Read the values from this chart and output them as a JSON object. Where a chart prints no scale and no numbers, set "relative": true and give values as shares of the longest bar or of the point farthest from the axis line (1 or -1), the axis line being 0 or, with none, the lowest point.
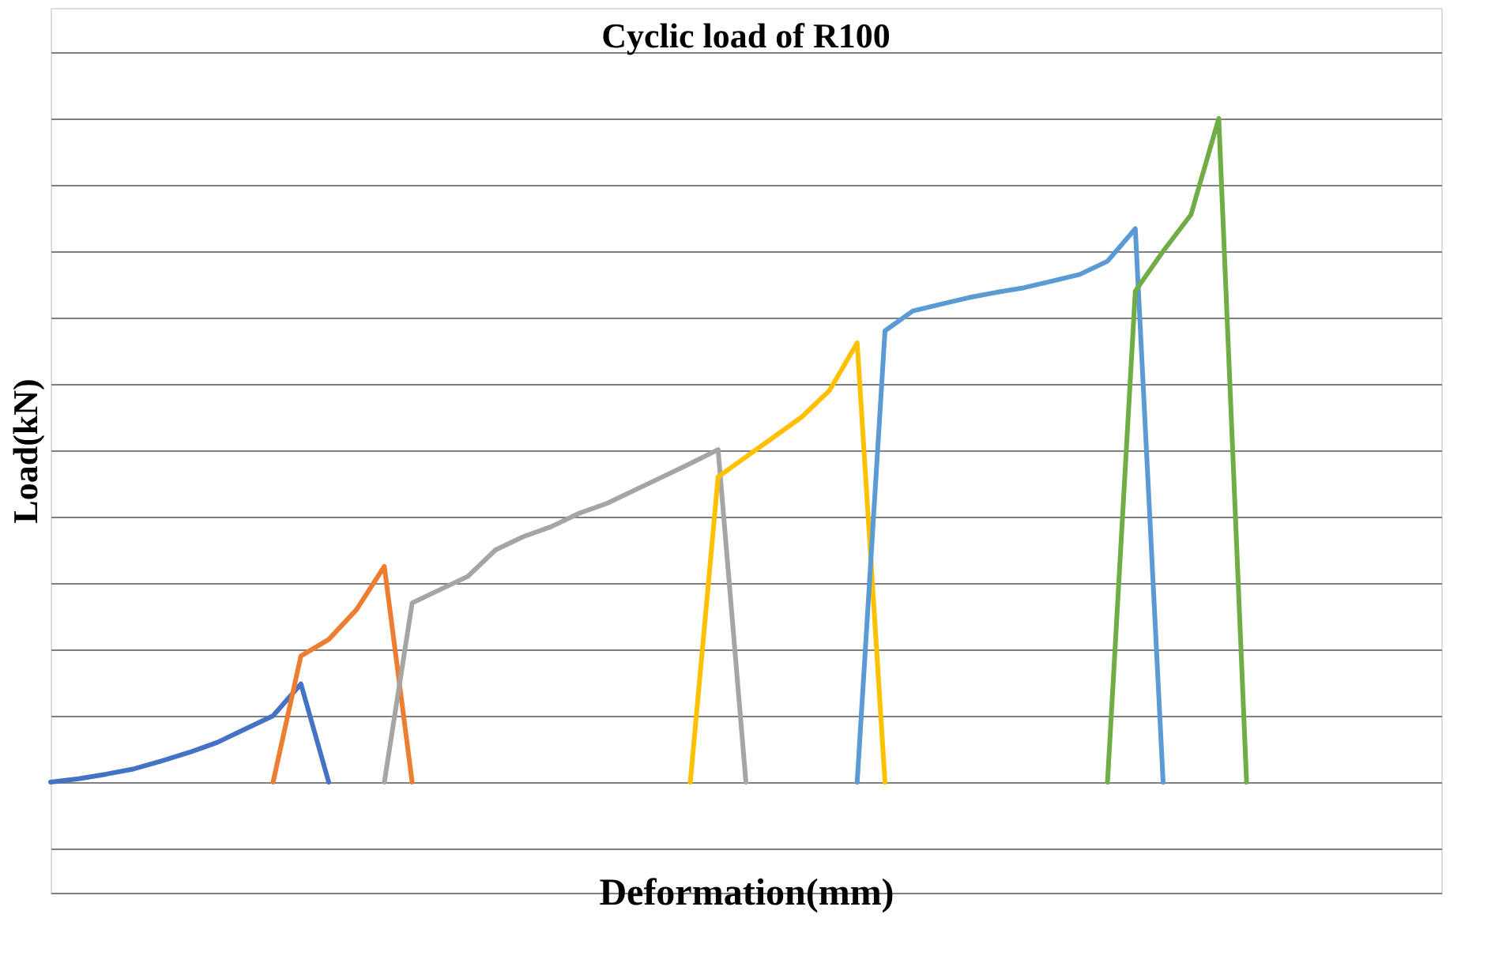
{
  "chart_data": {
    "type": "line",
    "title": "Cyclic load of R100",
    "xlabel": "Deformation(mm)",
    "ylabel": "Load(kN)",
    "relative": true,
    "grid": "y",
    "line_style": "solid",
    "categories": [
      null,
      null,
      null,
      null,
      null,
      null,
      null,
      null,
      null,
      null,
      null,
      null,
      null,
      null,
      null,
      null,
      null,
      null,
      null,
      null,
      null,
      null,
      null,
      null,
      null,
      null,
      null,
      null,
      null,
      null,
      null,
      null,
      null,
      null,
      null,
      null,
      null,
      null,
      null,
      null,
      null,
      null,
      null,
      null,
      null,
      null,
      null,
      null,
      null,
      null,
      null
    ],
    "series": [
      {
        "color": "#4472c4",
        "values": [
          0,
          0.005,
          0.012,
          0.02,
          0.032,
          0.045,
          0.06,
          0.08,
          0.1,
          0.148,
          0,
          null,
          null,
          null,
          null,
          null,
          null,
          null,
          null,
          null,
          null,
          null,
          null,
          null,
          null,
          null,
          null,
          null,
          null,
          null,
          null,
          null,
          null,
          null,
          null,
          null,
          null,
          null,
          null,
          null,
          null,
          null,
          null,
          null,
          null,
          null,
          null,
          null,
          null,
          null,
          null
        ]
      },
      {
        "color": "#ed7d31",
        "values": [
          null,
          null,
          null,
          null,
          null,
          null,
          null,
          null,
          0,
          0.19,
          0.215,
          0.26,
          0.325,
          0,
          null,
          null,
          null,
          null,
          null,
          null,
          null,
          null,
          null,
          null,
          null,
          null,
          null,
          null,
          null,
          null,
          null,
          null,
          null,
          null,
          null,
          null,
          null,
          null,
          null,
          null,
          null,
          null,
          null,
          null,
          null,
          null,
          null,
          null,
          null,
          null,
          null
        ]
      },
      {
        "color": "#a5a5a5",
        "values": [
          null,
          null,
          null,
          null,
          null,
          null,
          null,
          null,
          null,
          null,
          null,
          null,
          0,
          0.27,
          0.29,
          0.31,
          0.35,
          0.37,
          0.385,
          0.405,
          0.42,
          0.44,
          0.46,
          0.48,
          0.501,
          0,
          null,
          null,
          null,
          null,
          null,
          null,
          null,
          null,
          null,
          null,
          null,
          null,
          null,
          null,
          null,
          null,
          null,
          null,
          null,
          null,
          null,
          null,
          null,
          null,
          null
        ]
      },
      {
        "color": "#ffc000",
        "values": [
          null,
          null,
          null,
          null,
          null,
          null,
          null,
          null,
          null,
          null,
          null,
          null,
          null,
          null,
          null,
          null,
          null,
          null,
          null,
          null,
          null,
          null,
          null,
          0,
          0.46,
          0.49,
          0.52,
          0.55,
          0.59,
          0.662,
          0,
          null,
          null,
          null,
          null,
          null,
          null,
          null,
          null,
          null,
          null,
          null,
          null,
          null,
          null,
          null,
          null,
          null,
          null,
          null,
          null
        ]
      },
      {
        "color": "#5b9bd5",
        "values": [
          null,
          null,
          null,
          null,
          null,
          null,
          null,
          null,
          null,
          null,
          null,
          null,
          null,
          null,
          null,
          null,
          null,
          null,
          null,
          null,
          null,
          null,
          null,
          null,
          null,
          null,
          null,
          null,
          null,
          0,
          0.68,
          0.71,
          0.72,
          0.73,
          0.738,
          0.745,
          0.755,
          0.765,
          0.785,
          0.834,
          0,
          null,
          null,
          null,
          null,
          null,
          null,
          null,
          null,
          null,
          null
        ]
      },
      {
        "color": "#70ad47",
        "values": [
          null,
          null,
          null,
          null,
          null,
          null,
          null,
          null,
          null,
          null,
          null,
          null,
          null,
          null,
          null,
          null,
          null,
          null,
          null,
          null,
          null,
          null,
          null,
          null,
          null,
          null,
          null,
          null,
          null,
          null,
          null,
          null,
          null,
          null,
          null,
          null,
          null,
          null,
          0,
          0.74,
          0.8,
          0.855,
          1,
          0,
          null,
          null,
          null,
          null,
          null,
          null,
          null
        ]
      }
    ]
  }
}
